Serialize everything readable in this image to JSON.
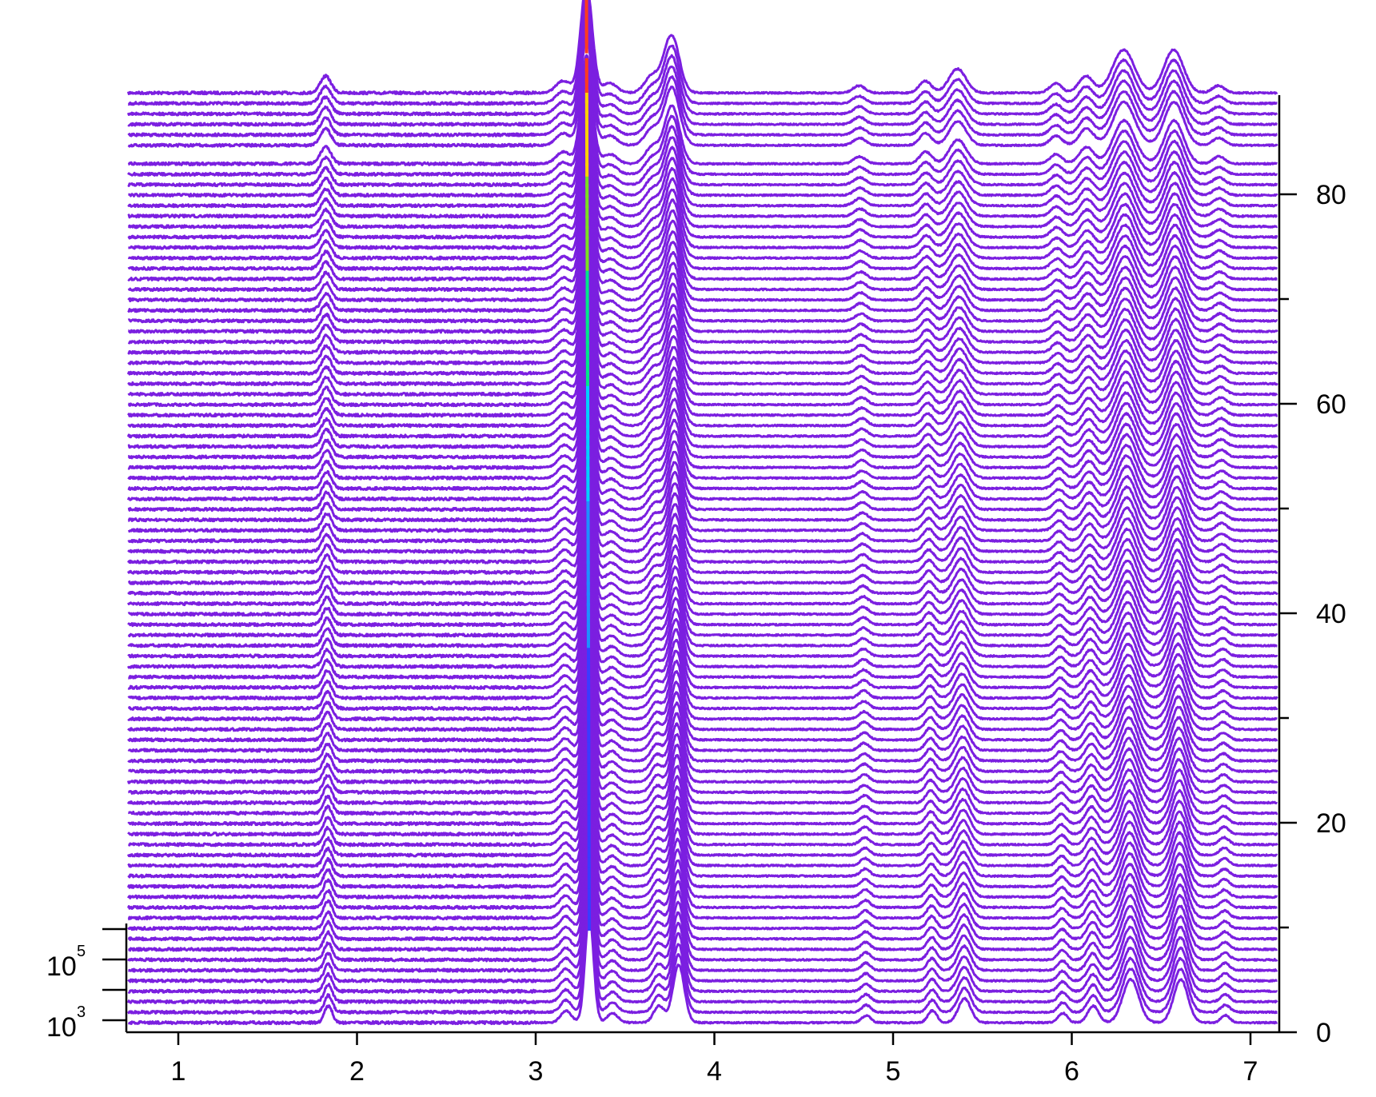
{
  "chart_data": {
    "type": "line",
    "style": "waterfall",
    "title": "",
    "xlabel": "",
    "ylabel": "",
    "zlabel": "",
    "xlim": [
      0.72,
      7.15
    ],
    "x_ticks": [
      "1",
      "2",
      "3",
      "4",
      "5",
      "6",
      "7"
    ],
    "x_tick_values": [
      1,
      2,
      3,
      4,
      5,
      6,
      7
    ],
    "right_axis": {
      "range": [
        0,
        88
      ],
      "ticks": [
        "0",
        "20",
        "40",
        "60",
        "80"
      ],
      "tick_values": [
        0,
        20,
        40,
        60,
        80
      ],
      "minor_step": 10
    },
    "left_axis": {
      "scale": "log",
      "ticks": [
        {
          "base": "10",
          "exp": "3",
          "value": 1000
        },
        {
          "base": "10",
          "exp": "5",
          "value": 100000
        }
      ],
      "minor_tick_values": [
        10000,
        1000000
      ]
    },
    "trace_count": 89,
    "trace_color": "#7b1fe0",
    "color_scale": [
      "#7b1fe0",
      "#3b3bff",
      "#1e90ff",
      "#00d0ff",
      "#00e68a",
      "#7be01f",
      "#ffd000",
      "#ff3b1f"
    ],
    "grid": false,
    "legend": "none",
    "peaks": [
      {
        "x": 1.84,
        "height": 0.7,
        "width": 0.022
      },
      {
        "x": 3.17,
        "height": 0.5,
        "width": 0.03
      },
      {
        "x": 3.3,
        "height": 4.5,
        "width": 0.024
      },
      {
        "x": 3.43,
        "height": 0.4,
        "width": 0.03
      },
      {
        "x": 3.69,
        "height": 0.7,
        "width": 0.03
      },
      {
        "x": 3.8,
        "height": 2.4,
        "width": 0.032
      },
      {
        "x": 4.85,
        "height": 0.3,
        "width": 0.025
      },
      {
        "x": 5.22,
        "height": 0.5,
        "width": 0.025
      },
      {
        "x": 5.4,
        "height": 1.0,
        "width": 0.035
      },
      {
        "x": 5.95,
        "height": 0.4,
        "width": 0.025
      },
      {
        "x": 6.12,
        "height": 0.7,
        "width": 0.03
      },
      {
        "x": 6.33,
        "height": 1.8,
        "width": 0.045
      },
      {
        "x": 6.61,
        "height": 1.8,
        "width": 0.04
      },
      {
        "x": 6.86,
        "height": 0.3,
        "width": 0.025
      }
    ]
  }
}
